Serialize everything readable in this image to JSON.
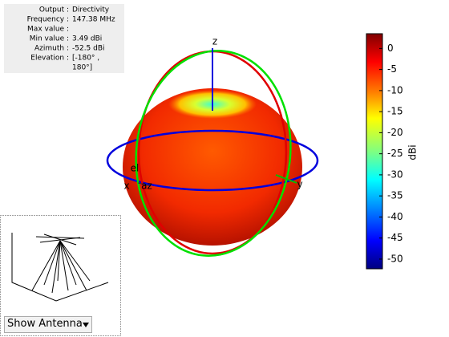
{
  "info": {
    "rows": [
      {
        "key": "Output :",
        "value": [
          "Directivity"
        ]
      },
      {
        "key": "Frequency :",
        "value": [
          "147.38 MHz"
        ]
      },
      {
        "key": "Max value :"
      },
      {
        "key": "Min value :",
        "value": [
          "3.49 dBi"
        ]
      },
      {
        "key": "Azimuth :",
        "value": [
          "-52.5 dBi"
        ]
      },
      {
        "key": "Elevation :",
        "value": [
          "[-180° ,",
          "180°]"
        ]
      }
    ]
  },
  "axes": {
    "z": "z",
    "x": "x",
    "y": "y",
    "az": "az",
    "el": "el"
  },
  "colorbar": {
    "label": "dBi",
    "lim": [
      -52.3,
      3.5
    ],
    "ticks": [
      0,
      -5,
      -10,
      -15,
      -20,
      -25,
      -30,
      -35,
      -40,
      -45,
      -50
    ]
  },
  "control": {
    "label": "Show Antenna"
  }
}
